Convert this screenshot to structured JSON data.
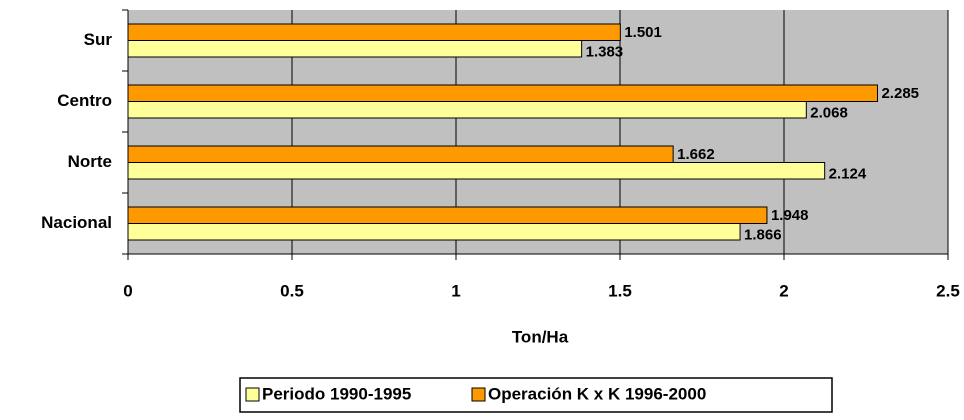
{
  "chart_data": {
    "type": "hbar",
    "x_label": "Ton/Ha",
    "categories": [
      "Sur",
      "Centro",
      "Norte",
      "Nacional"
    ],
    "series": [
      {
        "name": "Periodo 1990-1995",
        "color": "#FFFF99",
        "values": [
          1.383,
          2.068,
          2.124,
          1.866
        ]
      },
      {
        "name": "Operación K x K 1996-2000",
        "color": "#FF9900",
        "values": [
          1.501,
          2.285,
          1.662,
          1.948
        ]
      }
    ],
    "xlim": [
      0,
      2.5
    ],
    "xticks": [
      0,
      0.5,
      1,
      1.5,
      2,
      2.5
    ],
    "grid": true,
    "legend": "bottom",
    "plot_background": "#C0C0C0"
  }
}
